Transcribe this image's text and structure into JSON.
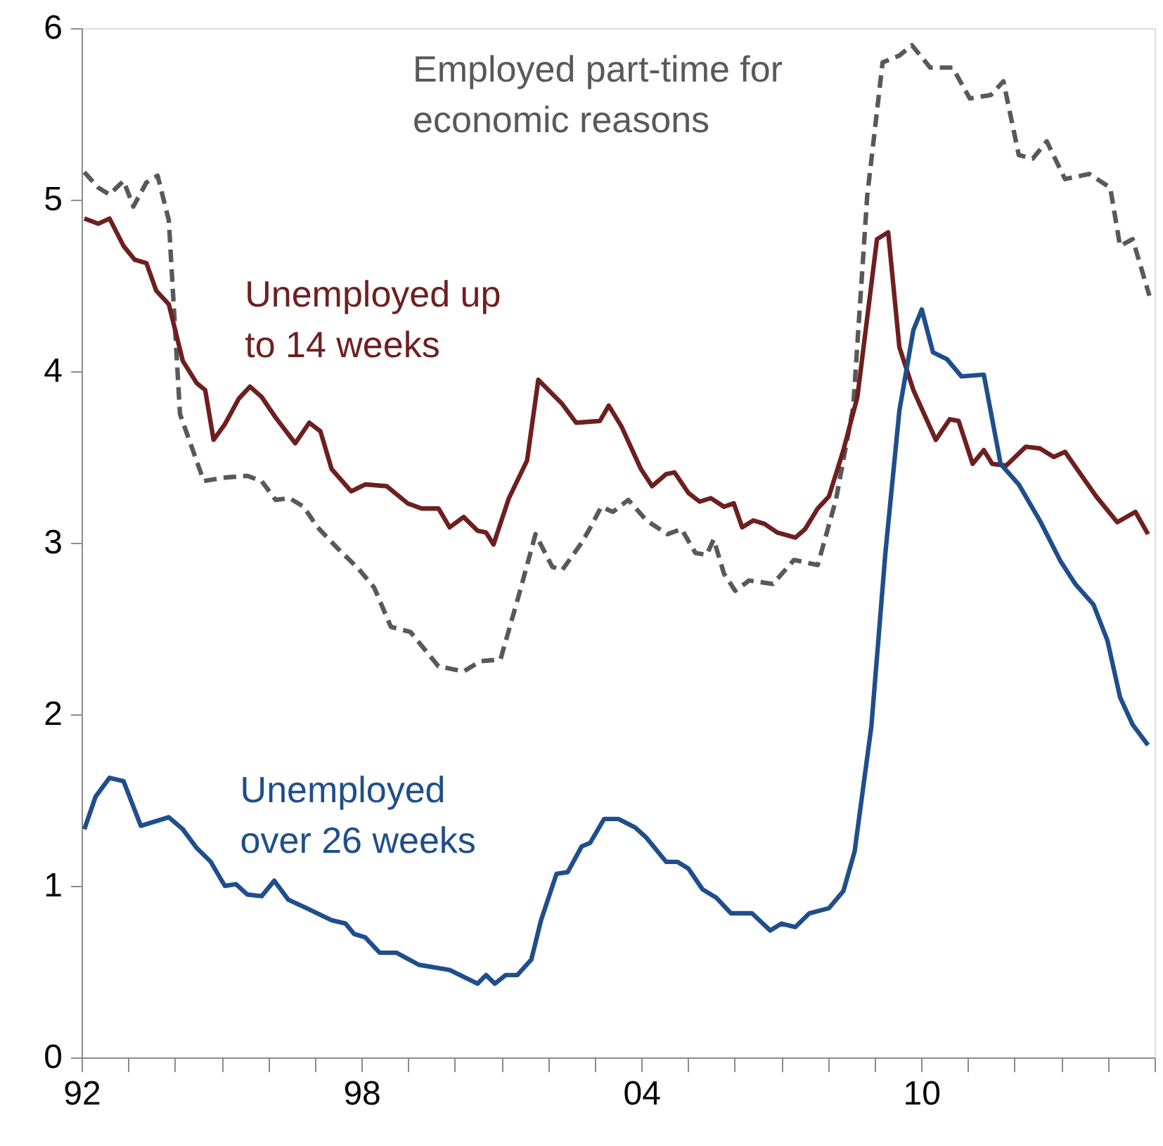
{
  "chart_data": {
    "type": "line",
    "legend": false,
    "grid": false,
    "marker": "none",
    "xlim": [
      1992,
      2015
    ],
    "ylim": [
      0,
      6
    ],
    "yticks": [
      0,
      1,
      2,
      3,
      4,
      5,
      6
    ],
    "xticks": [
      {
        "value": 1992,
        "label": "92"
      },
      {
        "value": 1993,
        "label": null
      },
      {
        "value": 1994,
        "label": null
      },
      {
        "value": 1995,
        "label": null
      },
      {
        "value": 1996,
        "label": null
      },
      {
        "value": 1997,
        "label": null
      },
      {
        "value": 1998,
        "label": "98"
      },
      {
        "value": 1999,
        "label": null
      },
      {
        "value": 2000,
        "label": null
      },
      {
        "value": 2001,
        "label": null
      },
      {
        "value": 2002,
        "label": null
      },
      {
        "value": 2003,
        "label": null
      },
      {
        "value": 2004,
        "label": "04"
      },
      {
        "value": 2005,
        "label": null
      },
      {
        "value": 2006,
        "label": null
      },
      {
        "value": 2007,
        "label": null
      },
      {
        "value": 2008,
        "label": null
      },
      {
        "value": 2009,
        "label": null
      },
      {
        "value": 2010,
        "label": "10"
      },
      {
        "value": 2011,
        "label": null
      },
      {
        "value": 2012,
        "label": null
      },
      {
        "value": 2013,
        "label": null
      },
      {
        "value": 2014,
        "label": null
      },
      {
        "value": 2015,
        "label": null
      }
    ],
    "series": [
      {
        "name": "Employed part-time for economic reasons",
        "color": "#595959",
        "line_style": "dashed",
        "x": [
          1992.06,
          1992.36,
          1992.6,
          1992.9,
          1993.11,
          1993.39,
          1993.63,
          1993.87,
          1994.11,
          1994.62,
          1995.07,
          1995.55,
          1995.86,
          1996.16,
          1996.46,
          1996.76,
          1997.06,
          1997.48,
          1997.93,
          1998.27,
          1998.63,
          1999.05,
          1999.65,
          2000.19,
          2000.55,
          2000.98,
          2001.4,
          2001.73,
          2002.09,
          2002.3,
          2002.72,
          2002.93,
          2003.14,
          2003.39,
          2003.72,
          2004.11,
          2004.56,
          2004.86,
          2005.16,
          2005.4,
          2005.55,
          2005.77,
          2006.01,
          2006.31,
          2006.82,
          2007.27,
          2007.78,
          2008.17,
          2008.54,
          2008.84,
          2009.17,
          2009.53,
          2009.8,
          2010.19,
          2010.67,
          2011.04,
          2011.49,
          2011.76,
          2012.09,
          2012.39,
          2012.69,
          2013.08,
          2013.6,
          2014.05,
          2014.26,
          2014.53,
          2014.89
        ],
        "values": [
          5.16,
          5.07,
          5.03,
          5.11,
          4.96,
          5.1,
          5.14,
          4.88,
          3.75,
          3.36,
          3.38,
          3.39,
          3.36,
          3.25,
          3.26,
          3.21,
          3.09,
          2.97,
          2.85,
          2.74,
          2.51,
          2.48,
          2.28,
          2.25,
          2.31,
          2.32,
          2.72,
          3.05,
          2.86,
          2.84,
          3.0,
          3.1,
          3.21,
          3.18,
          3.25,
          3.13,
          3.05,
          3.08,
          2.94,
          2.93,
          3.02,
          2.82,
          2.72,
          2.78,
          2.76,
          2.9,
          2.87,
          3.25,
          3.79,
          5.02,
          5.8,
          5.84,
          5.9,
          5.77,
          5.77,
          5.59,
          5.61,
          5.69,
          5.26,
          5.24,
          5.34,
          5.12,
          5.15,
          5.07,
          4.73,
          4.77,
          4.44
        ]
      },
      {
        "name": "Unemployed up to 14 weeks",
        "color": "#6e1f1f",
        "line_style": "solid",
        "x": [
          1992.06,
          1992.36,
          1992.6,
          1992.9,
          1993.14,
          1993.39,
          1993.6,
          1993.87,
          1994.17,
          1994.47,
          1994.65,
          1994.83,
          1995.07,
          1995.37,
          1995.61,
          1995.86,
          1996.16,
          1996.58,
          1996.88,
          1997.12,
          1997.36,
          1997.78,
          1998.08,
          1998.54,
          1998.99,
          1999.29,
          1999.65,
          1999.89,
          2000.19,
          2000.49,
          2000.67,
          2000.83,
          2001.16,
          2001.55,
          2001.79,
          2002.3,
          2002.6,
          2003.11,
          2003.3,
          2003.57,
          2003.99,
          2004.23,
          2004.53,
          2004.71,
          2005.01,
          2005.25,
          2005.49,
          2005.77,
          2005.98,
          2006.16,
          2006.4,
          2006.64,
          2006.91,
          2007.3,
          2007.51,
          2007.78,
          2008.02,
          2008.33,
          2008.63,
          2009.05,
          2009.29,
          2009.53,
          2009.83,
          2010.31,
          2010.61,
          2010.8,
          2011.1,
          2011.34,
          2011.52,
          2011.82,
          2012.24,
          2012.54,
          2012.84,
          2013.08,
          2013.75,
          2014.2,
          2014.59,
          2014.86
        ],
        "values": [
          4.89,
          4.86,
          4.89,
          4.73,
          4.65,
          4.63,
          4.47,
          4.39,
          4.06,
          3.93,
          3.89,
          3.6,
          3.69,
          3.84,
          3.91,
          3.85,
          3.73,
          3.58,
          3.7,
          3.65,
          3.43,
          3.3,
          3.34,
          3.33,
          3.23,
          3.2,
          3.2,
          3.09,
          3.15,
          3.07,
          3.06,
          2.99,
          3.26,
          3.48,
          3.95,
          3.81,
          3.7,
          3.71,
          3.8,
          3.68,
          3.43,
          3.33,
          3.4,
          3.41,
          3.29,
          3.24,
          3.26,
          3.21,
          3.23,
          3.09,
          3.13,
          3.11,
          3.06,
          3.03,
          3.08,
          3.2,
          3.27,
          3.54,
          3.85,
          4.77,
          4.81,
          4.14,
          3.89,
          3.6,
          3.72,
          3.71,
          3.46,
          3.54,
          3.46,
          3.45,
          3.56,
          3.55,
          3.5,
          3.53,
          3.27,
          3.12,
          3.18,
          3.05
        ]
      },
      {
        "name": "Unemployed over 26 weeks",
        "color": "#1f4e8c",
        "line_style": "solid",
        "x": [
          1992.06,
          1992.3,
          1992.6,
          1992.9,
          1993.27,
          1993.87,
          1994.17,
          1994.47,
          1994.77,
          1995.07,
          1995.31,
          1995.55,
          1995.86,
          1996.13,
          1996.43,
          1996.82,
          1997.36,
          1997.66,
          1997.84,
          1998.08,
          1998.39,
          1998.75,
          1999.23,
          1999.89,
          2000.49,
          2000.67,
          2000.86,
          2001.09,
          2001.34,
          2001.64,
          2001.85,
          2002.18,
          2002.42,
          2002.72,
          2002.9,
          2003.2,
          2003.51,
          2003.87,
          2004.11,
          2004.53,
          2004.77,
          2005.01,
          2005.31,
          2005.61,
          2005.92,
          2006.37,
          2006.76,
          2007.0,
          2007.3,
          2007.6,
          2008.02,
          2008.33,
          2008.57,
          2008.93,
          2009.23,
          2009.53,
          2009.83,
          2010.01,
          2010.25,
          2010.55,
          2010.86,
          2011.34,
          2011.7,
          2012.09,
          2012.54,
          2012.99,
          2013.3,
          2013.69,
          2013.99,
          2014.26,
          2014.53,
          2014.86
        ],
        "values": [
          1.33,
          1.52,
          1.63,
          1.61,
          1.35,
          1.4,
          1.33,
          1.22,
          1.14,
          1.0,
          1.01,
          0.95,
          0.94,
          1.03,
          0.92,
          0.87,
          0.8,
          0.78,
          0.72,
          0.7,
          0.61,
          0.61,
          0.54,
          0.51,
          0.43,
          0.48,
          0.43,
          0.48,
          0.48,
          0.57,
          0.8,
          1.07,
          1.08,
          1.23,
          1.25,
          1.39,
          1.39,
          1.34,
          1.28,
          1.14,
          1.14,
          1.1,
          0.98,
          0.93,
          0.84,
          0.84,
          0.74,
          0.78,
          0.76,
          0.84,
          0.87,
          0.97,
          1.2,
          1.93,
          2.94,
          3.77,
          4.24,
          4.36,
          4.11,
          4.07,
          3.97,
          3.98,
          3.46,
          3.34,
          3.13,
          2.89,
          2.76,
          2.64,
          2.43,
          2.1,
          1.94,
          1.82
        ]
      }
    ]
  }
}
